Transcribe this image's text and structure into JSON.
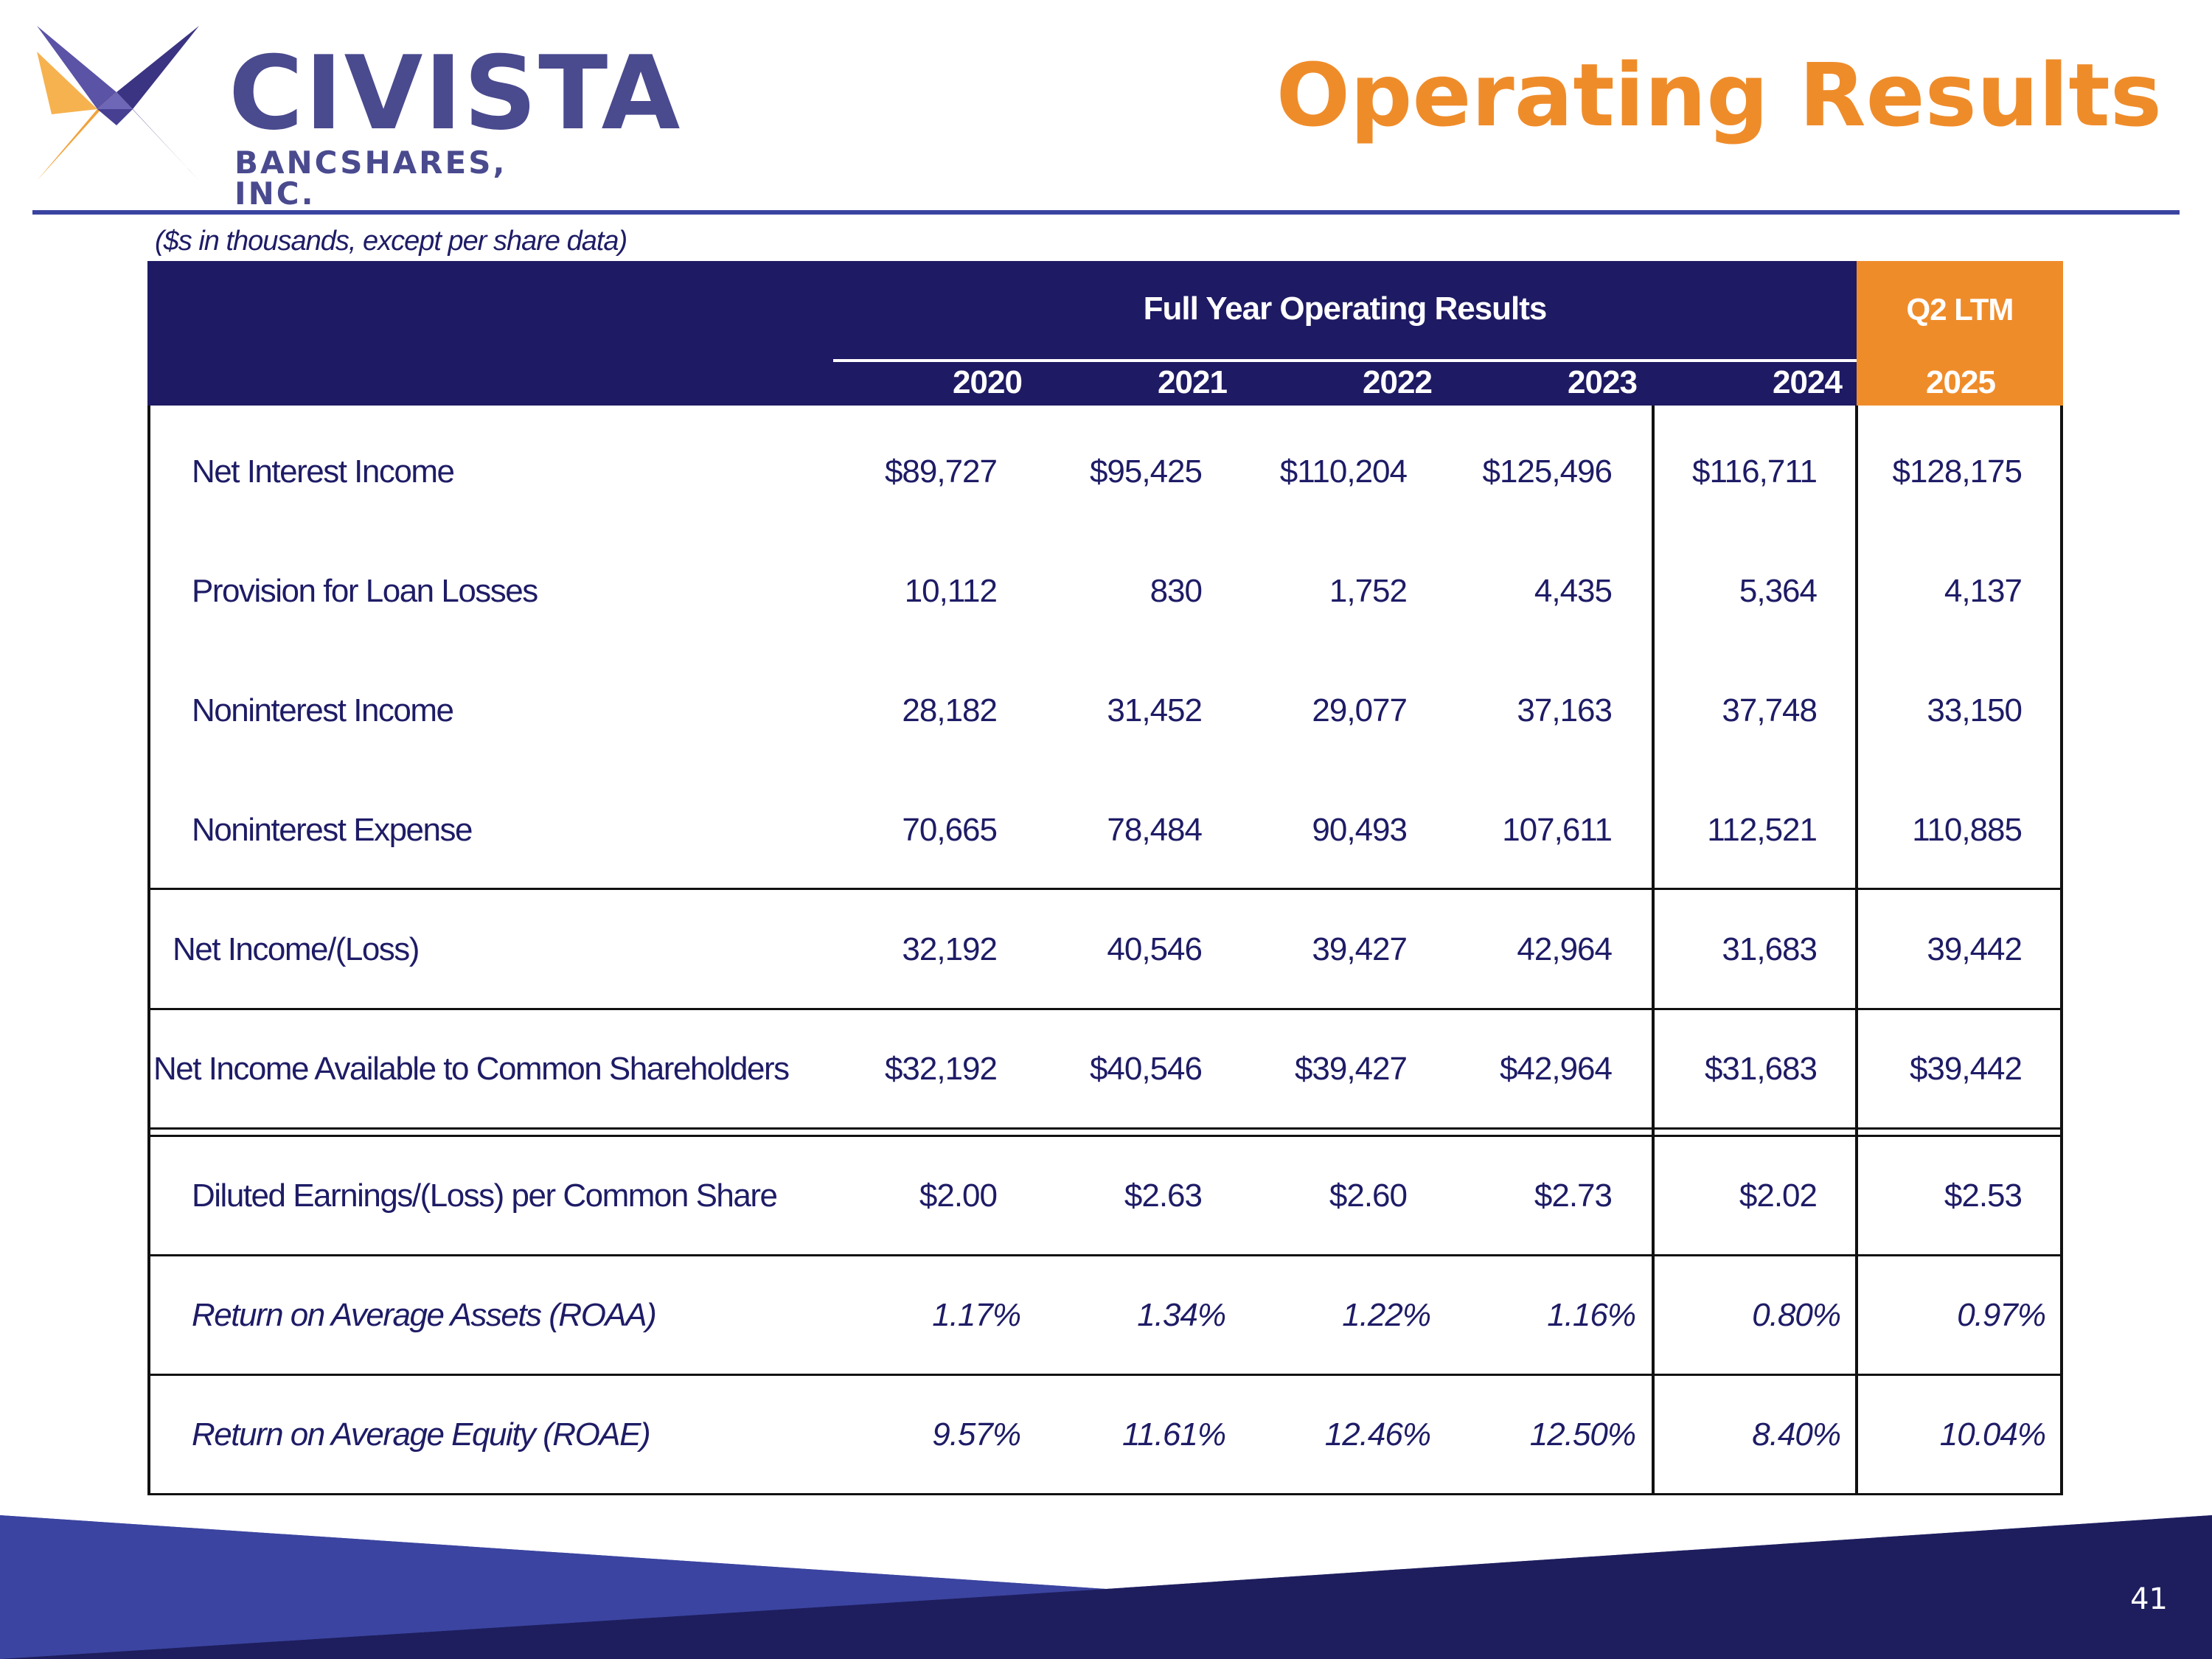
{
  "company": {
    "name": "CIVISTA",
    "subtitle": "BANCSHARES, INC."
  },
  "page_title": "Operating Results",
  "units_note": "($s in thousands, except per share data)",
  "table": {
    "group_header": "Full Year Operating Results",
    "ltm_header": "Q2 LTM",
    "years": [
      "2020",
      "2021",
      "2022",
      "2023",
      "2024",
      "2025"
    ],
    "rows": [
      {
        "label": "Net Interest Income",
        "values": [
          "$89,727",
          "$95,425",
          "$110,204",
          "$125,496",
          "$116,711",
          "$128,175"
        ]
      },
      {
        "label": "Provision for Loan Losses",
        "values": [
          "10,112",
          "830",
          "1,752",
          "4,435",
          "5,364",
          "4,137"
        ]
      },
      {
        "label": "Noninterest Income",
        "values": [
          "28,182",
          "31,452",
          "29,077",
          "37,163",
          "37,748",
          "33,150"
        ]
      },
      {
        "label": "Noninterest Expense",
        "values": [
          "70,665",
          "78,484",
          "90,493",
          "107,611",
          "112,521",
          "110,885"
        ]
      },
      {
        "label": "Net Income/(Loss)",
        "values": [
          "32,192",
          "40,546",
          "39,427",
          "42,964",
          "31,683",
          "39,442"
        ]
      },
      {
        "label": "Net Income Available to Common Shareholders",
        "values": [
          "$32,192",
          "$40,546",
          "$39,427",
          "$42,964",
          "$31,683",
          "$39,442"
        ]
      },
      {
        "label": "Diluted Earnings/(Loss) per Common Share",
        "values": [
          "$2.00",
          "$2.63",
          "$2.60",
          "$2.73",
          "$2.02",
          "$2.53"
        ]
      },
      {
        "label": "Return on Average Assets (ROAA)",
        "values": [
          "1.17%",
          "1.34%",
          "1.22%",
          "1.16%",
          "0.80%",
          "0.97%"
        ]
      },
      {
        "label": "Return on Average Equity (ROAE)",
        "values": [
          "9.57%",
          "11.61%",
          "12.46%",
          "12.50%",
          "8.40%",
          "10.04%"
        ]
      }
    ]
  },
  "page_number": "41",
  "colors": {
    "navy": "#1e1a63",
    "orange": "#ef8c2a",
    "band_light": "#3b44a0",
    "text": "#1e1c66"
  }
}
